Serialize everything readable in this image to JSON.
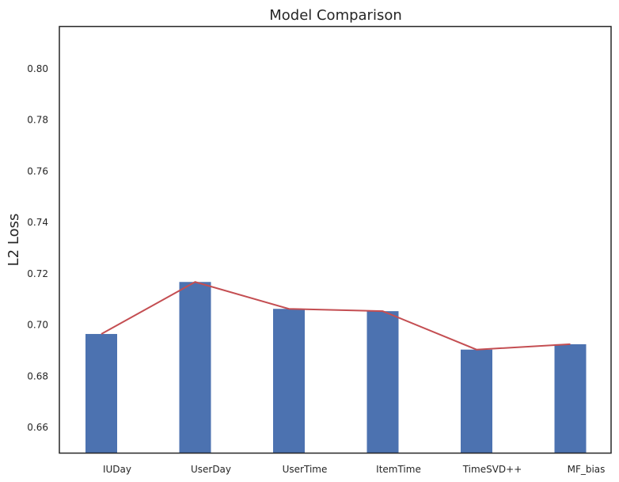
{
  "chart_data": {
    "type": "bar",
    "title": "Model Comparison",
    "xlabel": "",
    "ylabel": "L2 Loss",
    "categories": [
      "IUDay",
      "UserDay",
      "UserTime",
      "ItemTime",
      "TimeSVD++",
      "MF_bias"
    ],
    "series": [
      {
        "values": [
          0.6965,
          0.7168,
          0.7063,
          0.7054,
          0.6904,
          0.6925
        ]
      }
    ],
    "line_values": [
      0.6965,
      0.7168,
      0.7063,
      0.7054,
      0.6904,
      0.6925
    ],
    "ylim": [
      0.65,
      0.8165
    ],
    "yticks": [
      "0.66",
      "0.68",
      "0.70",
      "0.72",
      "0.74",
      "0.76",
      "0.78",
      "0.80"
    ],
    "ytick_values": [
      0.66,
      0.68,
      0.7,
      0.72,
      0.74,
      0.76,
      0.78,
      0.8
    ],
    "grid": false,
    "colors": {
      "bar": "#4c72b0",
      "line": "#c44e52",
      "axis": "#262626"
    }
  }
}
